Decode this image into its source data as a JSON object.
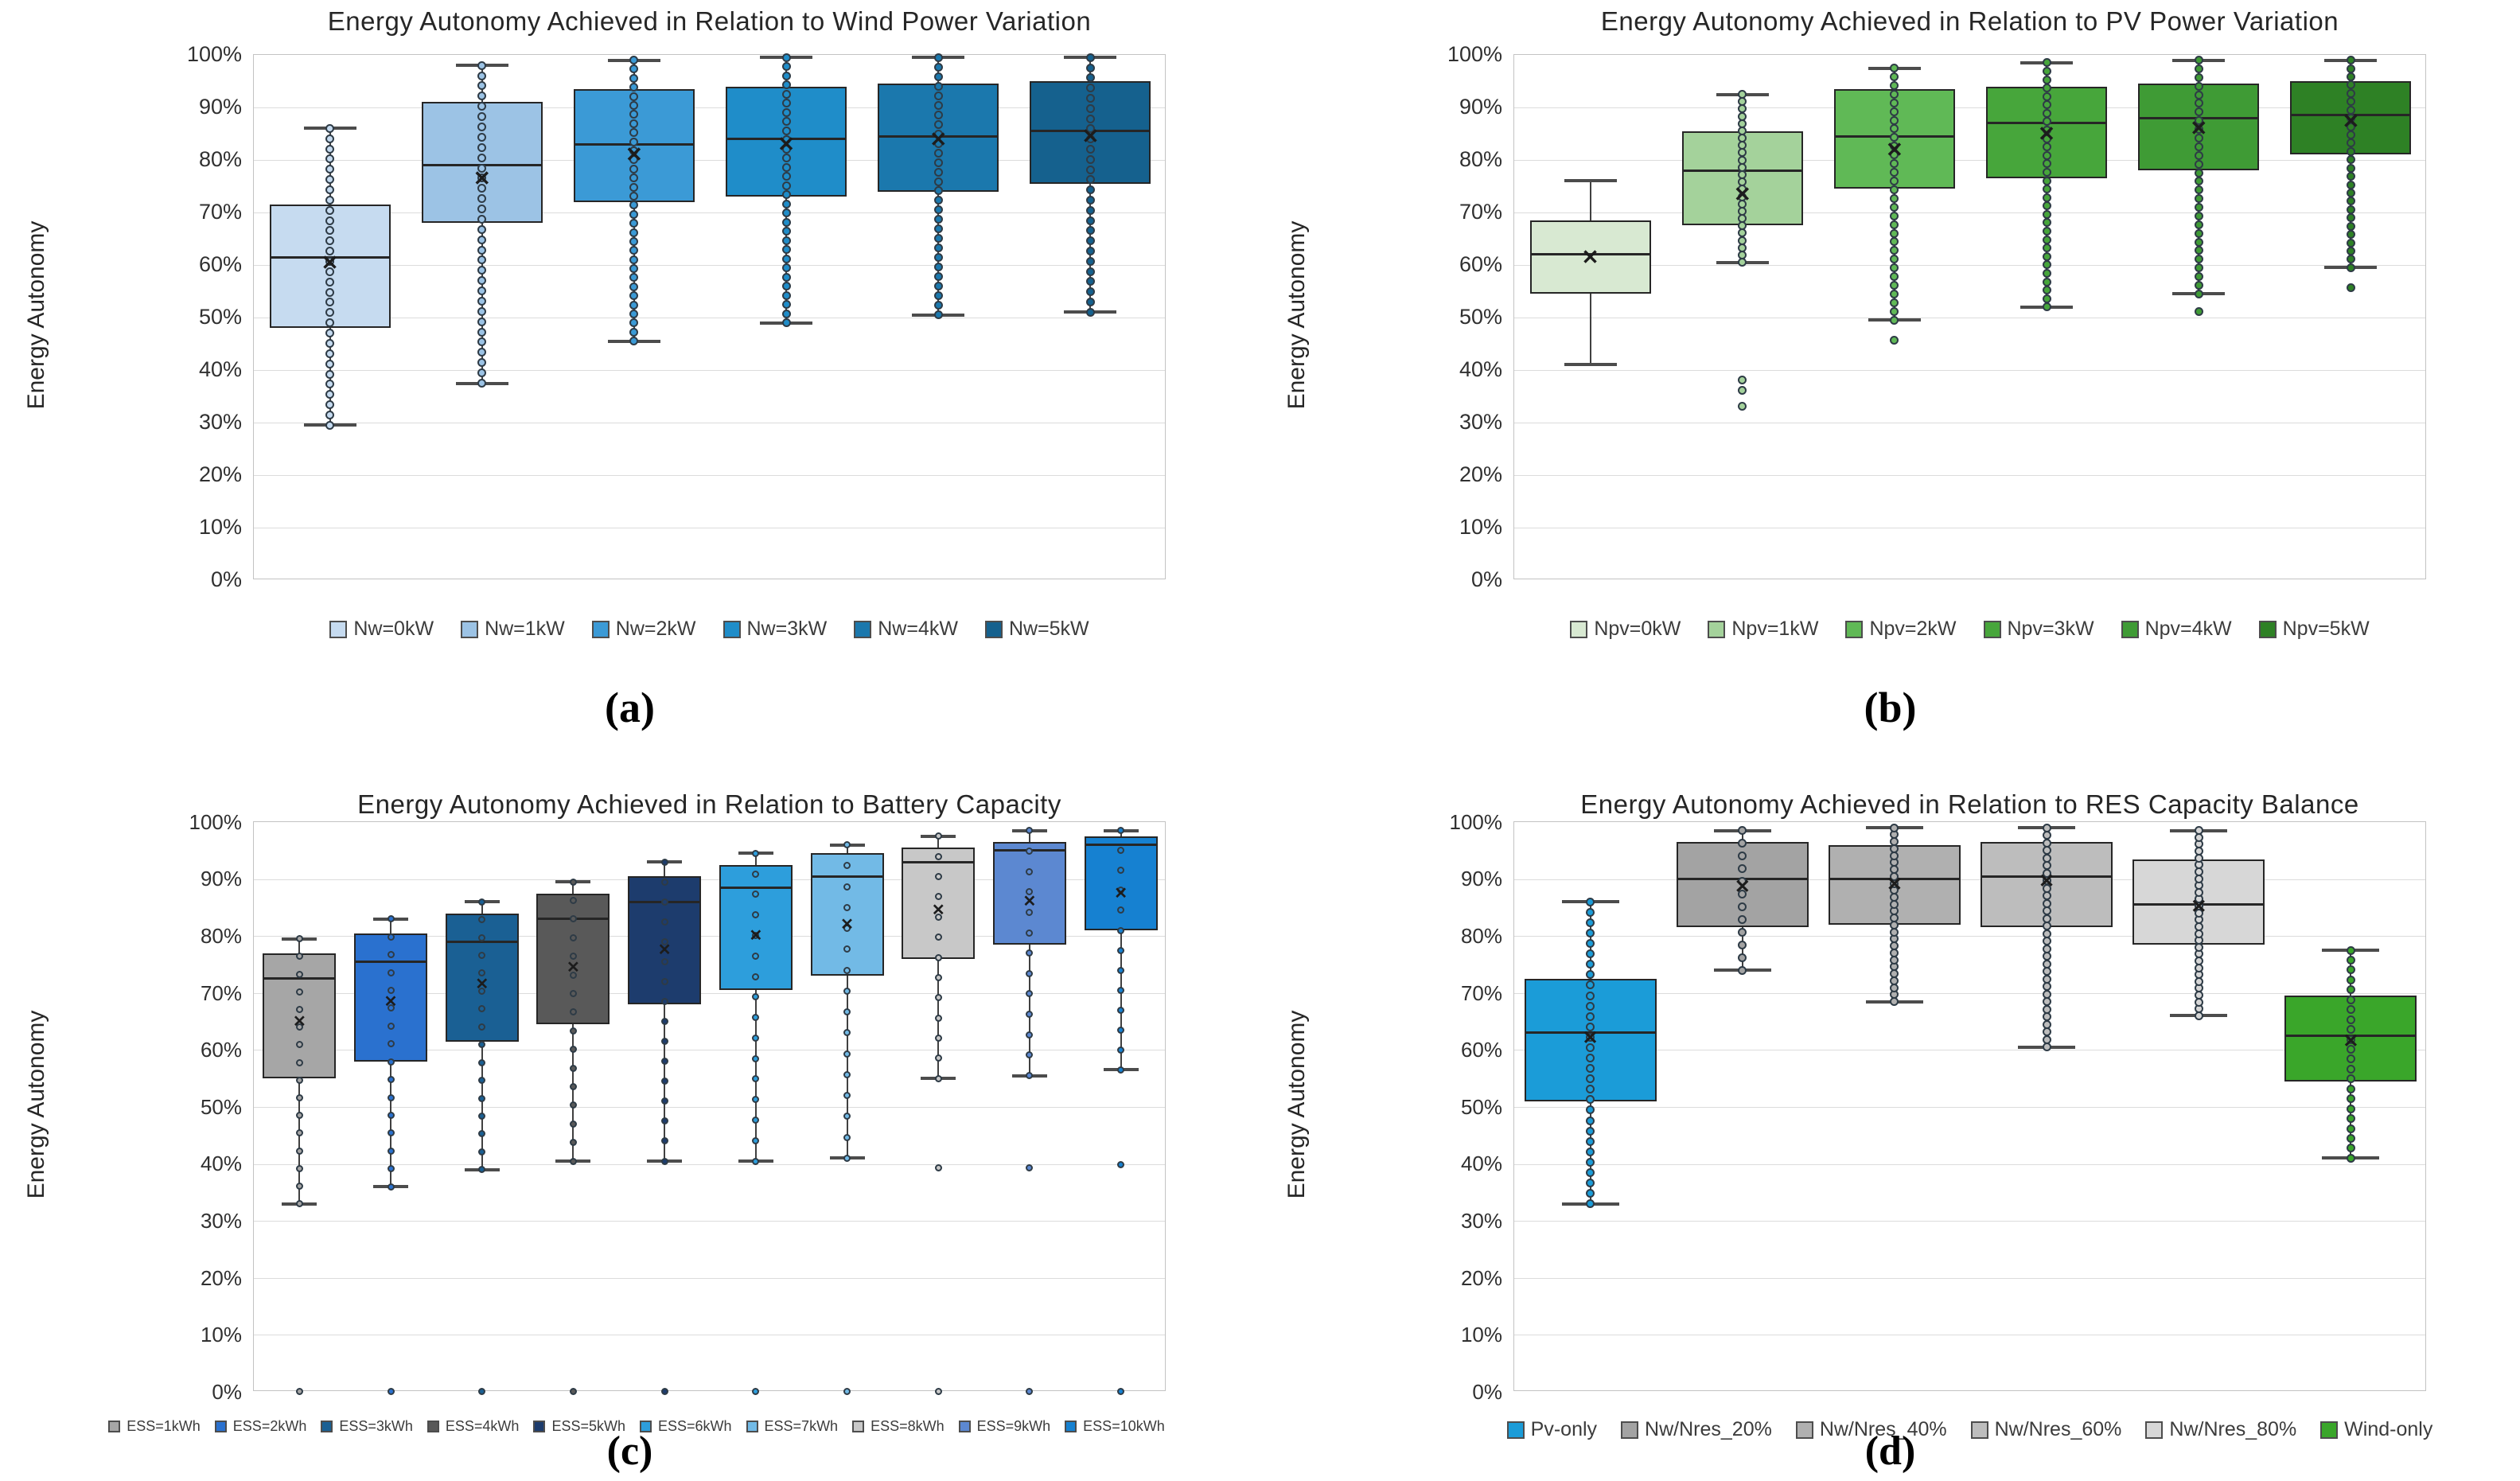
{
  "figure": {
    "ylabel_shared": "Energy Autonomy",
    "background": "#ffffff",
    "grid_color": "#dcdcdc"
  },
  "chart_data": [
    {
      "type": "box",
      "title": "Energy Autonomy Achieved in Relation to Wind Power Variation",
      "ylabel": "Energy Autonomy",
      "caption": "(a)",
      "ylim": [
        0,
        100
      ],
      "ytick_labels": [
        "0%",
        "10%",
        "20%",
        "30%",
        "40%",
        "50%",
        "60%",
        "70%",
        "80%",
        "90%",
        "100%"
      ],
      "grid": true,
      "legend_position": "bottom",
      "series": [
        {
          "name": "Nw=0kW",
          "color": "#c6dbf0",
          "whisker_low": 29.5,
          "q1": 48,
          "median": 61.5,
          "mean": 60.5,
          "q3": 71.5,
          "whisker_high": 86,
          "points_n": 30,
          "outliers": []
        },
        {
          "name": "Nw=1kW",
          "color": "#9cc3e5",
          "whisker_low": 37.5,
          "q1": 68,
          "median": 79,
          "mean": 76.5,
          "q3": 91,
          "whisker_high": 98,
          "points_n": 32,
          "outliers": []
        },
        {
          "name": "Nw=2kW",
          "color": "#3b9ad6",
          "whisker_low": 45.5,
          "q1": 72,
          "median": 83,
          "mean": 81,
          "q3": 93.5,
          "whisker_high": 99,
          "points_n": 32,
          "outliers": []
        },
        {
          "name": "Nw=3kW",
          "color": "#1f8dc9",
          "whisker_low": 49,
          "q1": 73,
          "median": 84,
          "mean": 83,
          "q3": 94,
          "whisker_high": 99.5,
          "points_n": 30,
          "outliers": []
        },
        {
          "name": "Nw=4kW",
          "color": "#1b78ad",
          "whisker_low": 50.5,
          "q1": 74,
          "median": 84.5,
          "mean": 84,
          "q3": 94.5,
          "whisker_high": 99.5,
          "points_n": 28,
          "outliers": []
        },
        {
          "name": "Nw=5kW",
          "color": "#15618e",
          "whisker_low": 51,
          "q1": 75.5,
          "median": 85.5,
          "mean": 84.5,
          "q3": 95,
          "whisker_high": 99.5,
          "points_n": 26,
          "outliers": []
        }
      ]
    },
    {
      "type": "box",
      "title": "Energy Autonomy Achieved in Relation to PV Power Variation",
      "ylabel": "Energy Autonomy",
      "caption": "(b)",
      "ylim": [
        0,
        100
      ],
      "ytick_labels": [
        "0%",
        "10%",
        "20%",
        "30%",
        "40%",
        "50%",
        "60%",
        "70%",
        "80%",
        "90%",
        "100%"
      ],
      "grid": true,
      "legend_position": "bottom",
      "series": [
        {
          "name": "Npv=0kW",
          "color": "#d8e9d2",
          "whisker_low": 41,
          "q1": 54.5,
          "median": 62,
          "mean": 61.5,
          "q3": 68.5,
          "whisker_high": 76,
          "points_n": 0,
          "outliers": []
        },
        {
          "name": "Npv=1kW",
          "color": "#a4d29b",
          "whisker_low": 60.5,
          "q1": 67.5,
          "median": 78,
          "mean": 73.5,
          "q3": 85.5,
          "whisker_high": 92.5,
          "points_n": 24,
          "outliers": [
            39,
            37,
            34
          ]
        },
        {
          "name": "Npv=2kW",
          "color": "#60b956",
          "whisker_low": 49.5,
          "q1": 74.5,
          "median": 84.5,
          "mean": 82,
          "q3": 93.5,
          "whisker_high": 97.5,
          "points_n": 30,
          "outliers": [
            46.5
          ]
        },
        {
          "name": "Npv=3kW",
          "color": "#47a63b",
          "whisker_low": 52,
          "q1": 76.5,
          "median": 87,
          "mean": 85,
          "q3": 94,
          "whisker_high": 98.5,
          "points_n": 30,
          "outliers": []
        },
        {
          "name": "Npv=4kW",
          "color": "#3f9b35",
          "whisker_low": 54.5,
          "q1": 78,
          "median": 88,
          "mean": 86,
          "q3": 94.5,
          "whisker_high": 99,
          "points_n": 28,
          "outliers": [
            52
          ]
        },
        {
          "name": "Npv=5kW",
          "color": "#2e8125",
          "whisker_low": 59.5,
          "q1": 81,
          "median": 88.5,
          "mean": 87.5,
          "q3": 95,
          "whisker_high": 99,
          "points_n": 26,
          "outliers": [
            56.5
          ]
        }
      ]
    },
    {
      "type": "box",
      "title": "Energy Autonomy Achieved in Relation to Battery Capacity",
      "ylabel": "Energy Autonomy",
      "caption": "(c)",
      "ylim": [
        0,
        100
      ],
      "ytick_labels": [
        "0%",
        "10%",
        "20%",
        "30%",
        "40%",
        "50%",
        "60%",
        "70%",
        "80%",
        "90%",
        "100%"
      ],
      "grid": true,
      "legend_position": "bottom",
      "series": [
        {
          "name": "ESS=1kWh",
          "color": "#a6a6a6",
          "whisker_low": 33,
          "q1": 55,
          "median": 72.5,
          "mean": 65,
          "q3": 77,
          "whisker_high": 79.5,
          "points_n": 16,
          "outliers": [
            0
          ]
        },
        {
          "name": "ESS=2kWh",
          "color": "#2a71cf",
          "whisker_low": 36,
          "q1": 58,
          "median": 75.5,
          "mean": 68.5,
          "q3": 80.5,
          "whisker_high": 83,
          "points_n": 16,
          "outliers": [
            0
          ]
        },
        {
          "name": "ESS=3kWh",
          "color": "#1a6094",
          "whisker_low": 39,
          "q1": 61.5,
          "median": 79,
          "mean": 71.5,
          "q3": 84,
          "whisker_high": 86,
          "points_n": 16,
          "outliers": [
            0
          ]
        },
        {
          "name": "ESS=4kWh",
          "color": "#595959",
          "whisker_low": 40.5,
          "q1": 64.5,
          "median": 83,
          "mean": 74.5,
          "q3": 87.5,
          "whisker_high": 89.5,
          "points_n": 16,
          "outliers": [
            0
          ]
        },
        {
          "name": "ESS=5kWh",
          "color": "#1d3c6d",
          "whisker_low": 40.5,
          "q1": 68,
          "median": 86,
          "mean": 77.5,
          "q3": 90.5,
          "whisker_high": 93,
          "points_n": 16,
          "outliers": [
            0
          ]
        },
        {
          "name": "ESS=6kWh",
          "color": "#2d9edc",
          "whisker_low": 40.5,
          "q1": 70.5,
          "median": 88.5,
          "mean": 80,
          "q3": 92.5,
          "whisker_high": 94.5,
          "points_n": 16,
          "outliers": [
            0
          ]
        },
        {
          "name": "ESS=7kWh",
          "color": "#72bae6",
          "whisker_low": 41,
          "q1": 73,
          "median": 90.5,
          "mean": 82,
          "q3": 94.5,
          "whisker_high": 96,
          "points_n": 16,
          "outliers": [
            0
          ]
        },
        {
          "name": "ESS=8kWh",
          "color": "#c8c8c8",
          "whisker_low": 55,
          "q1": 76,
          "median": 93,
          "mean": 84.5,
          "q3": 95.5,
          "whisker_high": 97.5,
          "points_n": 13,
          "outliers": [
            40,
            0
          ]
        },
        {
          "name": "ESS=9kWh",
          "color": "#5c88d1",
          "whisker_low": 55.5,
          "q1": 78.5,
          "median": 95,
          "mean": 86,
          "q3": 96.5,
          "whisker_high": 98.5,
          "points_n": 13,
          "outliers": [
            40,
            0
          ]
        },
        {
          "name": "ESS=10kWh",
          "color": "#1681d1",
          "whisker_low": 56.5,
          "q1": 81,
          "median": 96,
          "mean": 87.5,
          "q3": 97.5,
          "whisker_high": 98.5,
          "points_n": 13,
          "outliers": [
            40.5,
            0
          ]
        }
      ]
    },
    {
      "type": "box",
      "title": "Energy Autonomy Achieved in Relation to RES Capacity Balance",
      "ylabel": "Energy Autonomy",
      "caption": "(d)",
      "ylim": [
        0,
        100
      ],
      "ytick_labels": [
        "0%",
        "10%",
        "20%",
        "30%",
        "40%",
        "50%",
        "60%",
        "70%",
        "80%",
        "90%",
        "100%"
      ],
      "grid": true,
      "legend_position": "bottom",
      "series": [
        {
          "name": "Pv-only",
          "color": "#1b9cd8",
          "whisker_low": 33,
          "q1": 51,
          "median": 63,
          "mean": 62,
          "q3": 72.5,
          "whisker_high": 86,
          "points_n": 30,
          "outliers": []
        },
        {
          "name": "Nw/Nres_20%",
          "color": "#a3a3a3",
          "whisker_low": 74,
          "q1": 81.5,
          "median": 90,
          "mean": 88.5,
          "q3": 96.5,
          "whisker_high": 98.5,
          "points_n": 12,
          "outliers": []
        },
        {
          "name": "Nw/Nres_40%",
          "color": "#b0b0b0",
          "whisker_low": 68.5,
          "q1": 82,
          "median": 90,
          "mean": 89,
          "q3": 96,
          "whisker_high": 99,
          "points_n": 26,
          "outliers": []
        },
        {
          "name": "Nw/Nres_60%",
          "color": "#bdbdbd",
          "whisker_low": 60.5,
          "q1": 81.5,
          "median": 90.5,
          "mean": 89.5,
          "q3": 96.5,
          "whisker_high": 99,
          "points_n": 30,
          "outliers": []
        },
        {
          "name": "Nw/Nres_80%",
          "color": "#d7d7d7",
          "whisker_low": 66,
          "q1": 78.5,
          "median": 85.5,
          "mean": 85,
          "q3": 93.5,
          "whisker_high": 98.5,
          "points_n": 28,
          "outliers": []
        },
        {
          "name": "Wind-only",
          "color": "#3aa62a",
          "whisker_low": 41,
          "q1": 54.5,
          "median": 62.5,
          "mean": 61.5,
          "q3": 69.5,
          "whisker_high": 77.5,
          "points_n": 22,
          "outliers": []
        }
      ]
    }
  ]
}
